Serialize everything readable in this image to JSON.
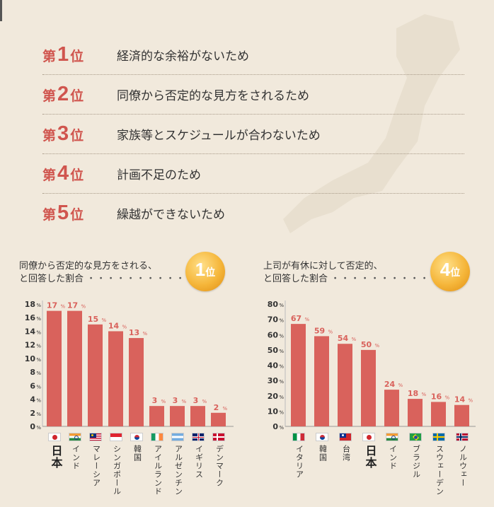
{
  "ranking": [
    {
      "prefix": "第",
      "num": "1",
      "suffix": "位",
      "text": "経済的な余裕がないため"
    },
    {
      "prefix": "第",
      "num": "2",
      "suffix": "位",
      "text": "同僚から否定的な見方をされるため"
    },
    {
      "prefix": "第",
      "num": "3",
      "suffix": "位",
      "text": "家族等とスケジュールが合わないため"
    },
    {
      "prefix": "第",
      "num": "4",
      "suffix": "位",
      "text": "計画不足のため"
    },
    {
      "prefix": "第",
      "num": "5",
      "suffix": "位",
      "text": "繰越ができないため"
    }
  ],
  "left_panel": {
    "line1": "同僚から否定的な見方をされる、",
    "line2": "と回答した割合",
    "dots": "・・・・・・・・・・・・・・",
    "medal_num": "1",
    "medal_suffix": "位"
  },
  "right_panel": {
    "line1": "上司が有休に対して否定的、",
    "line2": "と回答した割合",
    "dots": "・・・・・・・・・・・・・",
    "medal_num": "4",
    "medal_suffix": "位"
  },
  "colors": {
    "bar": "#d9625c",
    "label": "#d9625c",
    "background": "#f1e9dc"
  },
  "chart_data": [
    {
      "type": "bar",
      "title": "同僚から否定的な見方をされる、と回答した割合",
      "categories": [
        "日本",
        "インド",
        "マレーシア",
        "シンガポール",
        "韓国",
        "アイルランド",
        "アルゼンチン",
        "イギリス",
        "デンマーク"
      ],
      "values": [
        17,
        17,
        15,
        14,
        13,
        3,
        3,
        3,
        2
      ],
      "value_labels": [
        "17",
        "17",
        "15",
        "14",
        "13",
        "3",
        "3",
        "3",
        "2"
      ],
      "unit": "%",
      "ylim": [
        0,
        18
      ],
      "yticks": [
        "18",
        "16",
        "14",
        "12",
        "10",
        "8",
        "6",
        "4",
        "2",
        "0"
      ],
      "highlight": "日本",
      "flags": [
        "japan",
        "india",
        "malaysia",
        "singapore",
        "korea",
        "ireland",
        "argentina",
        "uk",
        "denmark"
      ]
    },
    {
      "type": "bar",
      "title": "上司が有休に対して否定的、と回答した割合",
      "categories": [
        "イタリア",
        "韓国",
        "台湾",
        "日本",
        "インド",
        "ブラジル",
        "スウェーデン",
        "ノルウェー"
      ],
      "values": [
        67,
        59,
        54,
        50,
        24,
        18,
        16,
        14
      ],
      "value_labels": [
        "67",
        "59",
        "54",
        "50",
        "24",
        "18",
        "16",
        "14"
      ],
      "unit": "%",
      "ylim": [
        0,
        80
      ],
      "yticks": [
        "80",
        "70",
        "60",
        "50",
        "40",
        "30",
        "20",
        "10",
        "0"
      ],
      "highlight": "日本",
      "flags": [
        "italy",
        "korea",
        "taiwan",
        "japan",
        "india",
        "brazil",
        "sweden",
        "norway"
      ]
    }
  ]
}
